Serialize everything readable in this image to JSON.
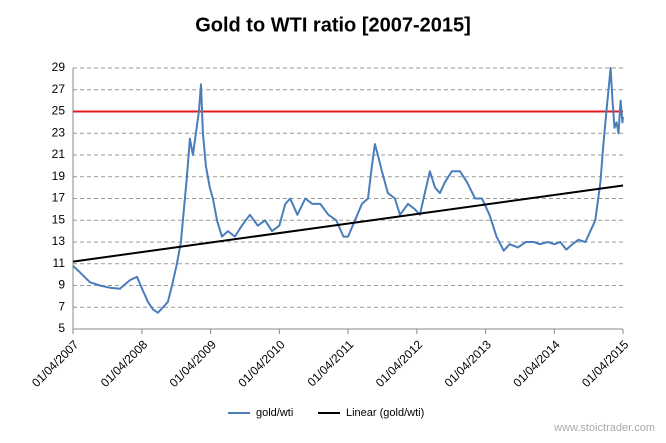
{
  "chart_data": {
    "type": "line",
    "title": "Gold to WTI ratio [2007-2015]",
    "watermark": "www.stoictrader.com",
    "xlim": [
      "2007-04-01",
      "2015-04-01"
    ],
    "xticks": [
      {
        "value": "2007-04-01",
        "label": "01/04/2007"
      },
      {
        "value": "2008-04-01",
        "label": "01/04/2008"
      },
      {
        "value": "2009-04-01",
        "label": "01/04/2009"
      },
      {
        "value": "2010-04-01",
        "label": "01/04/2010"
      },
      {
        "value": "2011-04-01",
        "label": "01/04/2011"
      },
      {
        "value": "2012-04-01",
        "label": "01/04/2012"
      },
      {
        "value": "2013-04-01",
        "label": "01/04/2013"
      },
      {
        "value": "2014-04-01",
        "label": "01/04/2014"
      },
      {
        "value": "2015-04-01",
        "label": "01/04/2015"
      }
    ],
    "ylim": [
      5,
      29
    ],
    "yticks": [
      5,
      7,
      9,
      11,
      13,
      15,
      17,
      19,
      21,
      23,
      25,
      27,
      29
    ],
    "grid": true,
    "reference_line": {
      "value": 25,
      "color": "#e41a1c"
    },
    "legend": "bottom",
    "series": [
      {
        "name": "gold/wti",
        "color": "#4a7ebb",
        "x": [
          "2007-04-01",
          "2007-05-08",
          "2007-06-30",
          "2007-08-22",
          "2007-10-14",
          "2007-12-06",
          "2008-01-29",
          "2008-03-06",
          "2008-04-07",
          "2008-05-03",
          "2008-05-30",
          "2008-06-25",
          "2008-07-22",
          "2008-08-17",
          "2008-09-08",
          "2008-10-04",
          "2008-10-25",
          "2008-11-10",
          "2008-11-26",
          "2008-12-12",
          "2008-12-28",
          "2009-01-13",
          "2009-01-29",
          "2009-02-09",
          "2009-02-19",
          "2009-03-07",
          "2009-03-28",
          "2009-04-13",
          "2009-05-05",
          "2009-05-31",
          "2009-07-02",
          "2009-08-08",
          "2009-09-14",
          "2009-10-27",
          "2009-12-08",
          "2010-01-15",
          "2010-02-21",
          "2010-04-01",
          "2010-05-03",
          "2010-05-29",
          "2010-07-06",
          "2010-08-17",
          "2010-09-24",
          "2010-11-05",
          "2010-12-18",
          "2011-01-29",
          "2011-03-08",
          "2011-04-01",
          "2011-05-08",
          "2011-06-14",
          "2011-07-16",
          "2011-08-06",
          "2011-08-22",
          "2011-09-07",
          "2011-09-28",
          "2011-10-30",
          "2011-12-06",
          "2012-01-02",
          "2012-02-14",
          "2012-03-22",
          "2012-04-17",
          "2012-05-13",
          "2012-06-09",
          "2012-07-06",
          "2012-08-01",
          "2012-08-28",
          "2012-10-04",
          "2012-11-16",
          "2012-12-23",
          "2013-02-04",
          "2013-03-13",
          "2013-04-22",
          "2013-05-29",
          "2013-07-06",
          "2013-08-07",
          "2013-09-19",
          "2013-11-01",
          "2013-12-13",
          "2014-01-14",
          "2014-02-26",
          "2014-04-01",
          "2014-05-03",
          "2014-06-04",
          "2014-07-06",
          "2014-08-07",
          "2014-09-13",
          "2014-10-10",
          "2014-11-05",
          "2014-12-02",
          "2014-12-18",
          "2015-01-03",
          "2015-01-14",
          "2015-01-25",
          "2015-02-04",
          "2015-02-15",
          "2015-02-26",
          "2015-03-08",
          "2015-03-19",
          "2015-03-29",
          "2015-04-01"
        ],
        "values": [
          10.8,
          10.2,
          9.3,
          9.0,
          8.8,
          8.7,
          9.5,
          9.8,
          8.5,
          7.5,
          6.8,
          6.5,
          7.0,
          7.5,
          9,
          11,
          13,
          16,
          19,
          22.5,
          21,
          23,
          25,
          27.5,
          23,
          20,
          18,
          17,
          15,
          13.5,
          14,
          13.5,
          14.5,
          15.5,
          14.5,
          15,
          14,
          14.5,
          16.5,
          17,
          15.5,
          17,
          16.5,
          16.5,
          15.5,
          15,
          13.5,
          13.5,
          15,
          16.5,
          17,
          20,
          22,
          21,
          19.5,
          17.5,
          17,
          15.5,
          16.5,
          16,
          15.5,
          17.5,
          19.5,
          18,
          17.5,
          18.5,
          19.5,
          19.5,
          18.5,
          17,
          17,
          15.5,
          13.5,
          12.2,
          12.8,
          12.5,
          13,
          13,
          12.8,
          13,
          12.8,
          13,
          12.3,
          12.8,
          13.2,
          13,
          14,
          15,
          18.5,
          22,
          25,
          27,
          29,
          26,
          23.5,
          24,
          23,
          26,
          24,
          24.5
        ]
      },
      {
        "name": "Linear (gold/wti)",
        "color": "#000000",
        "x": [
          "2007-04-01",
          "2015-04-01"
        ],
        "values": [
          11.2,
          18.2
        ]
      }
    ]
  }
}
